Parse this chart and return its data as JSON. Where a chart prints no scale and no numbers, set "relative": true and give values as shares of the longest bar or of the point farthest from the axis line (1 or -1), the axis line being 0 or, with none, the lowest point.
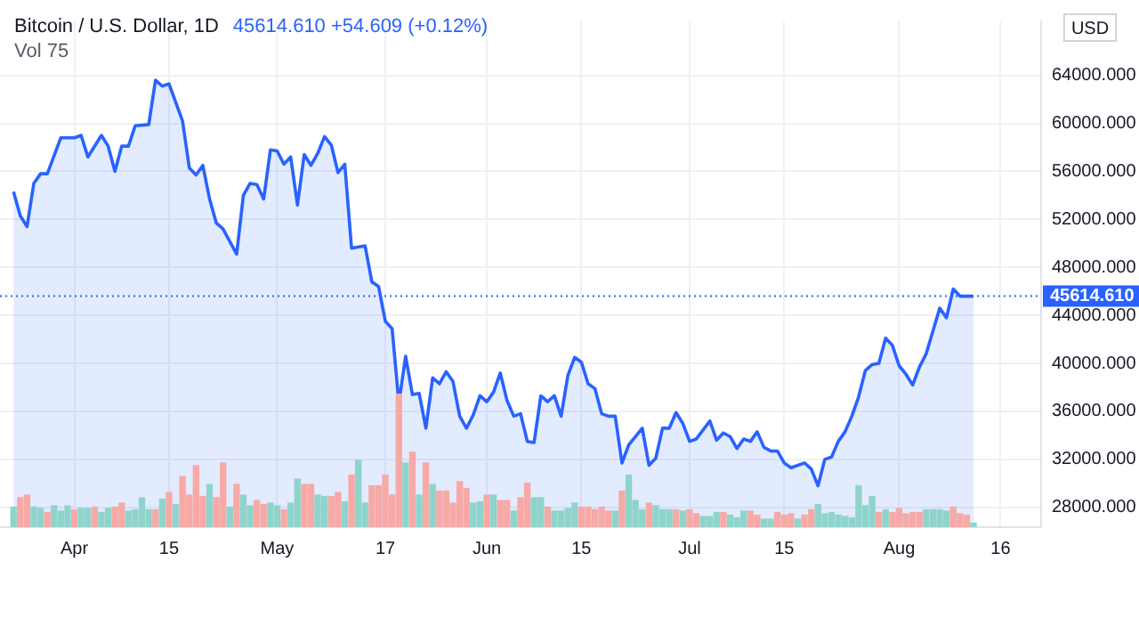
{
  "chart_data": [
    {
      "type": "area",
      "title": "Bitcoin / U.S. Dollar, 1D",
      "subtitle": "45614.610 +54.609 (+0.12%)",
      "ylabel": "USD",
      "annotations": [
        "Vol 75"
      ],
      "x": [
        "--03-23",
        "--03-24",
        "--03-25",
        "--03-26",
        "--03-27",
        "--03-28",
        "--03-29",
        "--03-30",
        "--04-01",
        "--04-02",
        "--04-03",
        "--04-05",
        "--04-06",
        "--04-07",
        "--04-08",
        "--04-09",
        "--04-10",
        "--04-12",
        "--04-13",
        "--04-14",
        "--04-15",
        "--04-17",
        "--04-18",
        "--04-19",
        "--04-20",
        "--04-21",
        "--04-22",
        "--04-23",
        "--04-25",
        "--04-26",
        "--04-27",
        "--04-28",
        "--04-29",
        "--04-30",
        "--05-01",
        "--05-02",
        "--05-03",
        "--05-04",
        "--05-05",
        "--05-06",
        "--05-07",
        "--05-08",
        "--05-09",
        "--05-10",
        "--05-11",
        "--05-12",
        "--05-14",
        "--05-15",
        "--05-16",
        "--05-17",
        "--05-18",
        "--05-19",
        "--05-20",
        "--05-21",
        "--05-22",
        "--05-23",
        "--05-24",
        "--05-25",
        "--05-26",
        "--05-27",
        "--05-28",
        "--05-29",
        "--05-30",
        "--05-31",
        "--06-01",
        "--06-02",
        "--06-03",
        "--06-04",
        "--06-05",
        "--06-06",
        "--06-07",
        "--06-08",
        "--06-09",
        "--06-10",
        "--06-11",
        "--06-12",
        "--06-13",
        "--06-14",
        "--06-15",
        "--06-16",
        "--06-17",
        "--06-18",
        "--06-19",
        "--06-20",
        "--06-21",
        "--06-22",
        "--06-24",
        "--06-25",
        "--06-26",
        "--06-27",
        "--06-28",
        "--06-29",
        "--06-30",
        "--07-01",
        "--07-02",
        "--07-04",
        "--07-05",
        "--07-06",
        "--07-07",
        "--07-08",
        "--07-09",
        "--07-10",
        "--07-11",
        "--07-12",
        "--07-13",
        "--07-14",
        "--07-15",
        "--07-16",
        "--07-18",
        "--07-19",
        "--07-20",
        "--07-21",
        "--07-22",
        "--07-23",
        "--07-24",
        "--07-25",
        "--07-26",
        "--07-27",
        "--07-28",
        "--07-29",
        "--07-30",
        "--07-31",
        "--08-01",
        "--08-02",
        "--08-03",
        "--08-04",
        "--08-05",
        "--08-06",
        "--08-07",
        "--08-08",
        "--08-09",
        "--08-10",
        "--08-11",
        "--08-12"
      ],
      "series": [
        {
          "color": "#2962ff",
          "values": [
            54300,
            52300,
            51400,
            55000,
            55800,
            55800,
            57300,
            58800,
            58800,
            59000,
            57200,
            59000,
            58100,
            56000,
            58100,
            58100,
            59800,
            59900,
            63600,
            63100,
            63300,
            60200,
            56300,
            55700,
            56500,
            53700,
            51700,
            51200,
            49100,
            54000,
            55000,
            54900,
            53700,
            57800,
            57700,
            56600,
            57200,
            53200,
            57400,
            56500,
            57500,
            58900,
            58200,
            55900,
            56600,
            49600,
            49800,
            46800,
            46400,
            43500,
            42900,
            36700,
            40600,
            37400,
            37500,
            34600,
            38800,
            38300,
            39300,
            38500,
            35600,
            34600,
            35700,
            37300,
            36800,
            37600,
            39200,
            36900,
            35600,
            35800,
            33500,
            33400,
            37300,
            36800,
            37300,
            35600,
            39000,
            40500,
            40100,
            38300,
            37900,
            35800,
            35600,
            35600,
            31700,
            33200,
            34600,
            31500,
            32100,
            34600,
            34600,
            35900,
            35000,
            33500,
            33700,
            35200,
            33600,
            34200,
            33900,
            32900,
            33700,
            33500,
            34300,
            33000,
            32700,
            32700,
            31700,
            31300,
            31700,
            31200,
            29800,
            32000,
            32200,
            33500,
            34300,
            35600,
            37200,
            39400,
            39900,
            40000,
            42100,
            41500,
            39800,
            39100,
            38200,
            39700,
            40800,
            42700,
            44600,
            43800,
            46200,
            45600,
            45600,
            45600
          ]
        }
      ],
      "xlim": [
        "--03-21",
        "--08-22"
      ],
      "xticks": [
        {
          "value": "--04-01",
          "label": "Apr"
        },
        {
          "value": "--04-15",
          "label": "15"
        },
        {
          "value": "--05-01",
          "label": "May"
        },
        {
          "value": "--05-17",
          "label": "17"
        },
        {
          "value": "--06-01",
          "label": "Jun"
        },
        {
          "value": "--06-15",
          "label": "15"
        },
        {
          "value": "--07-01",
          "label": "Jul"
        },
        {
          "value": "--07-15",
          "label": "15"
        },
        {
          "value": "--08-01",
          "label": "Aug"
        },
        {
          "value": "--08-16",
          "label": "16"
        }
      ],
      "ylim": [
        26350,
        68500
      ],
      "yticks": [
        {
          "value": 28000,
          "label": "28000.000"
        },
        {
          "value": 32000,
          "label": "32000.000"
        },
        {
          "value": 36000,
          "label": "36000.000"
        },
        {
          "value": 40000,
          "label": "40000.000"
        },
        {
          "value": 44000,
          "label": "44000.000"
        },
        {
          "value": 48000,
          "label": "48000.000"
        },
        {
          "value": 52000,
          "label": "52000.000"
        },
        {
          "value": 56000,
          "label": "56000.000"
        },
        {
          "value": 60000,
          "label": "60000.000"
        },
        {
          "value": 64000,
          "label": "64000.000"
        }
      ],
      "grid": true,
      "ref_lines": [
        {
          "axis": "y",
          "value": 45614.61,
          "label": "45614.610",
          "color": "#2962ff",
          "line_style": "dotted"
        }
      ]
    },
    {
      "type": "bar",
      "relative": true,
      "tick_labels": false,
      "x": [
        "--03-23",
        "--03-24",
        "--03-25",
        "--03-26",
        "--03-27",
        "--03-28",
        "--03-29",
        "--03-30",
        "--03-31",
        "--04-01",
        "--04-02",
        "--04-03",
        "--04-04",
        "--04-05",
        "--04-06",
        "--04-07",
        "--04-08",
        "--04-09",
        "--04-10",
        "--04-11",
        "--04-12",
        "--04-13",
        "--04-14",
        "--04-15",
        "--04-16",
        "--04-17",
        "--04-18",
        "--04-19",
        "--04-20",
        "--04-21",
        "--04-22",
        "--04-23",
        "--04-24",
        "--04-25",
        "--04-26",
        "--04-27",
        "--04-28",
        "--04-29",
        "--04-30",
        "--05-01",
        "--05-02",
        "--05-03",
        "--05-04",
        "--05-05",
        "--05-06",
        "--05-07",
        "--05-08",
        "--05-09",
        "--05-10",
        "--05-11",
        "--05-12",
        "--05-13",
        "--05-14",
        "--05-15",
        "--05-16",
        "--05-17",
        "--05-18",
        "--05-19",
        "--05-20",
        "--05-21",
        "--05-22",
        "--05-23",
        "--05-24",
        "--05-25",
        "--05-26",
        "--05-27",
        "--05-28",
        "--05-29",
        "--05-30",
        "--05-31",
        "--06-01",
        "--06-02",
        "--06-03",
        "--06-04",
        "--06-05",
        "--06-06",
        "--06-07",
        "--06-08",
        "--06-09",
        "--06-10",
        "--06-11",
        "--06-12",
        "--06-13",
        "--06-14",
        "--06-15",
        "--06-16",
        "--06-17",
        "--06-18",
        "--06-19",
        "--06-20",
        "--06-21",
        "--06-22",
        "--06-23",
        "--06-24",
        "--06-25",
        "--06-26",
        "--06-27",
        "--06-28",
        "--06-29",
        "--06-30",
        "--07-01",
        "--07-02",
        "--07-03",
        "--07-04",
        "--07-05",
        "--07-06",
        "--07-07",
        "--07-08",
        "--07-09",
        "--07-10",
        "--07-11",
        "--07-12",
        "--07-13",
        "--07-14",
        "--07-15",
        "--07-16",
        "--07-17",
        "--07-18",
        "--07-19",
        "--07-20",
        "--07-21",
        "--07-22",
        "--07-23",
        "--07-24",
        "--07-25",
        "--07-26",
        "--07-27",
        "--07-28",
        "--07-29",
        "--07-30",
        "--07-31",
        "--08-01",
        "--08-02",
        "--08-03",
        "--08-04",
        "--08-05",
        "--08-06",
        "--08-07",
        "--08-08",
        "--08-09",
        "--08-10",
        "--08-11",
        "--08-12"
      ],
      "values": [
        0.15,
        0.22,
        0.24,
        0.15,
        0.14,
        0.11,
        0.16,
        0.12,
        0.16,
        0.13,
        0.14,
        0.14,
        0.15,
        0.11,
        0.14,
        0.15,
        0.18,
        0.12,
        0.13,
        0.22,
        0.13,
        0.13,
        0.21,
        0.26,
        0.17,
        0.38,
        0.24,
        0.46,
        0.23,
        0.32,
        0.22,
        0.48,
        0.15,
        0.32,
        0.24,
        0.16,
        0.2,
        0.17,
        0.18,
        0.16,
        0.13,
        0.18,
        0.36,
        0.32,
        0.32,
        0.24,
        0.23,
        0.23,
        0.26,
        0.19,
        0.39,
        0.5,
        0.18,
        0.31,
        0.31,
        0.39,
        0.24,
        1,
        0.48,
        0.56,
        0.24,
        0.48,
        0.32,
        0.27,
        0.27,
        0.18,
        0.34,
        0.29,
        0.18,
        0.19,
        0.24,
        0.24,
        0.2,
        0.2,
        0.12,
        0.22,
        0.33,
        0.22,
        0.22,
        0.15,
        0.12,
        0.12,
        0.14,
        0.18,
        0.15,
        0.15,
        0.13,
        0.15,
        0.12,
        0.12,
        0.27,
        0.39,
        0.2,
        0.13,
        0.18,
        0.16,
        0.13,
        0.13,
        0.13,
        0.12,
        0.13,
        0.1,
        0.08,
        0.08,
        0.11,
        0.11,
        0.09,
        0.07,
        0.12,
        0.12,
        0.09,
        0.06,
        0.06,
        0.11,
        0.09,
        0.1,
        0.06,
        0.09,
        0.13,
        0.17,
        0.1,
        0.11,
        0.09,
        0.08,
        0.07,
        0.31,
        0.16,
        0.23,
        0.11,
        0.13,
        0.11,
        0.14,
        0.1,
        0.11,
        0.11,
        0.13,
        0.13,
        0.13,
        0.12,
        0.15,
        0.1,
        0.09,
        0.03
      ],
      "colors": [
        "#8fd4cb",
        "#f7a9a6",
        "#f7a9a6",
        "#8fd4cb",
        "#8fd4cb",
        "#f7a9a6",
        "#8fd4cb",
        "#8fd4cb",
        "#8fd4cb",
        "#f7a9a6",
        "#8fd4cb",
        "#8fd4cb",
        "#f7a9a6",
        "#8fd4cb",
        "#8fd4cb",
        "#f7a9a6",
        "#f7a9a6",
        "#8fd4cb",
        "#8fd4cb",
        "#8fd4cb",
        "#8fd4cb",
        "#f7a9a6",
        "#8fd4cb",
        "#f7a9a6",
        "#8fd4cb",
        "#f7a9a6",
        "#f7a9a6",
        "#f7a9a6",
        "#f7a9a6",
        "#8fd4cb",
        "#f7a9a6",
        "#f7a9a6",
        "#8fd4cb",
        "#f7a9a6",
        "#8fd4cb",
        "#8fd4cb",
        "#f7a9a6",
        "#f7a9a6",
        "#8fd4cb",
        "#8fd4cb",
        "#f7a9a6",
        "#8fd4cb",
        "#8fd4cb",
        "#f7a9a6",
        "#f7a9a6",
        "#8fd4cb",
        "#8fd4cb",
        "#f7a9a6",
        "#f7a9a6",
        "#8fd4cb",
        "#f7a9a6",
        "#8fd4cb",
        "#8fd4cb",
        "#f7a9a6",
        "#f7a9a6",
        "#f7a9a6",
        "#f7a9a6",
        "#f7a9a6",
        "#8fd4cb",
        "#f7a9a6",
        "#8fd4cb",
        "#f7a9a6",
        "#8fd4cb",
        "#f7a9a6",
        "#f7a9a6",
        "#f7a9a6",
        "#f7a9a6",
        "#f7a9a6",
        "#8fd4cb",
        "#8fd4cb",
        "#f7a9a6",
        "#8fd4cb",
        "#f7a9a6",
        "#f7a9a6",
        "#8fd4cb",
        "#f7a9a6",
        "#f7a9a6",
        "#8fd4cb",
        "#8fd4cb",
        "#f7a9a6",
        "#8fd4cb",
        "#8fd4cb",
        "#8fd4cb",
        "#8fd4cb",
        "#f7a9a6",
        "#f7a9a6",
        "#f7a9a6",
        "#f7a9a6",
        "#f7a9a6",
        "#8fd4cb",
        "#f7a9a6",
        "#8fd4cb",
        "#8fd4cb",
        "#8fd4cb",
        "#f7a9a6",
        "#8fd4cb",
        "#8fd4cb",
        "#8fd4cb",
        "#f7a9a6",
        "#8fd4cb",
        "#f7a9a6",
        "#f7a9a6",
        "#8fd4cb",
        "#8fd4cb",
        "#8fd4cb",
        "#f7a9a6",
        "#8fd4cb",
        "#8fd4cb",
        "#8fd4cb",
        "#f7a9a6",
        "#f7a9a6",
        "#8fd4cb",
        "#8fd4cb",
        "#f7a9a6",
        "#f7a9a6",
        "#f7a9a6",
        "#8fd4cb",
        "#f7a9a6",
        "#f7a9a6",
        "#8fd4cb",
        "#8fd4cb",
        "#8fd4cb",
        "#8fd4cb",
        "#8fd4cb",
        "#8fd4cb",
        "#8fd4cb",
        "#8fd4cb",
        "#8fd4cb",
        "#f7a9a6",
        "#8fd4cb",
        "#f7a9a6",
        "#f7a9a6",
        "#f7a9a6",
        "#f7a9a6",
        "#f7a9a6",
        "#8fd4cb",
        "#8fd4cb",
        "#8fd4cb",
        "#8fd4cb",
        "#f7a9a6",
        "#f7a9a6",
        "#f7a9a6",
        "#8fd4cb"
      ],
      "xlim": [
        "--03-21",
        "--08-22"
      ]
    }
  ]
}
